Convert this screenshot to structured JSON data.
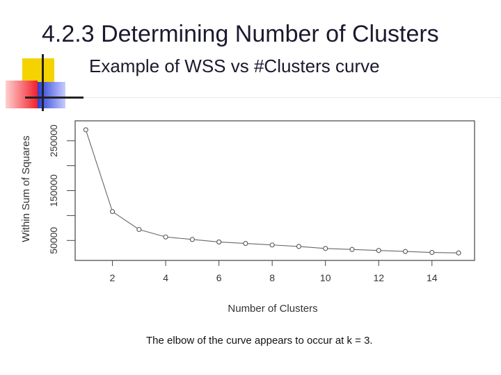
{
  "slide": {
    "title": "4.2.3 Determining Number of Clusters",
    "subtitle": "Example of WSS vs #Clusters curve",
    "caption": "The elbow of the curve appears to occur at k = 3."
  },
  "colors": {
    "deco_yellow": "#f5d300",
    "deco_red": "#f0202a",
    "deco_blue": "#2a3fd8",
    "line_dark": "#222222"
  },
  "chart_data": {
    "type": "line",
    "xlabel": "Number of Clusters",
    "ylabel": "Within Sum of Squares",
    "x": [
      1,
      2,
      3,
      4,
      5,
      6,
      7,
      8,
      9,
      10,
      11,
      12,
      13,
      14,
      15
    ],
    "y": [
      272000,
      108000,
      72000,
      57000,
      52000,
      47000,
      44000,
      41000,
      38000,
      34000,
      32000,
      30000,
      28000,
      26000,
      25000
    ],
    "xticks": [
      "2",
      "4",
      "6",
      "8",
      "10",
      "12",
      "14"
    ],
    "xtick_values": [
      2,
      4,
      6,
      8,
      10,
      12,
      14
    ],
    "yticks": [
      "50000",
      "150000",
      "250000"
    ],
    "ytick_values": [
      50000,
      150000,
      250000
    ],
    "xlim": [
      0.6,
      15.6
    ],
    "ylim": [
      10000,
      290000
    ],
    "grid": false,
    "legend": "none"
  }
}
